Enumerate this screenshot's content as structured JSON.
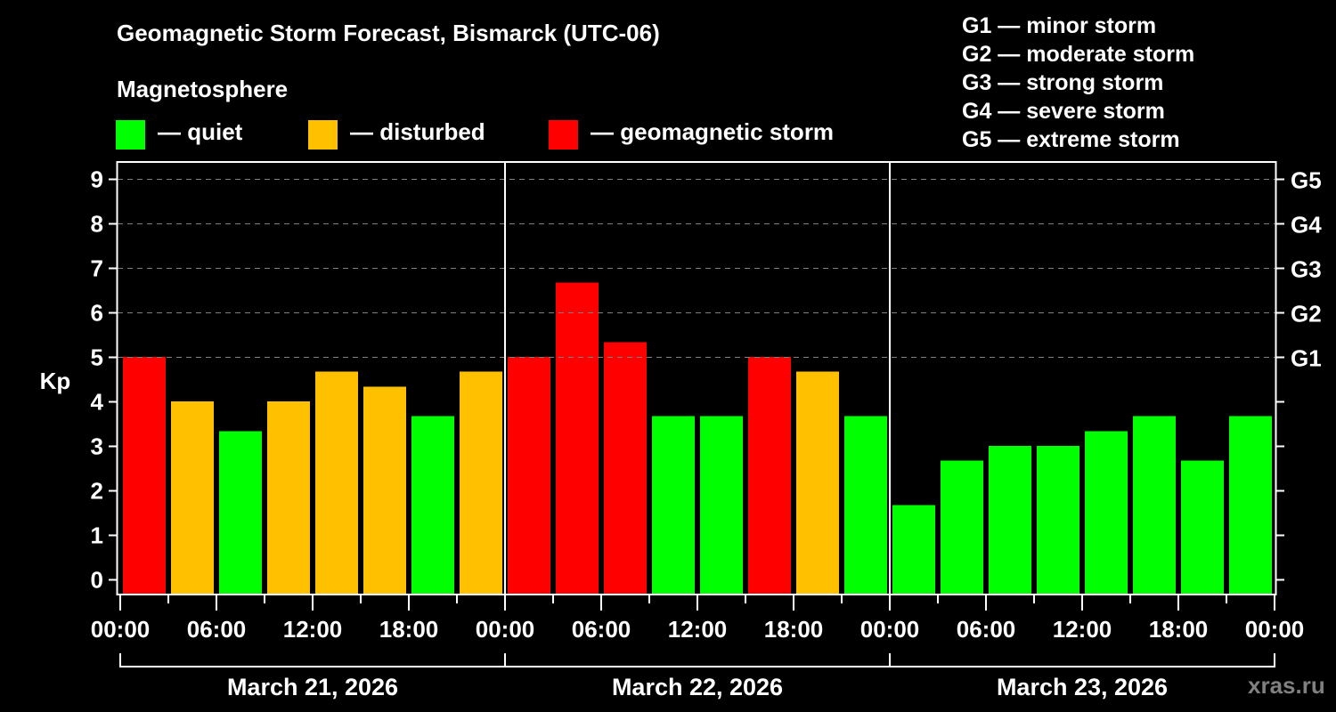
{
  "title": "Geomagnetic Storm Forecast, Bismarck (UTC-06)",
  "subtitle": "Magnetosphere",
  "legend": [
    {
      "label": "— quiet",
      "color": "#00ff00"
    },
    {
      "label": "— disturbed",
      "color": "#ffc000"
    },
    {
      "label": "— geomagnetic storm",
      "color": "#ff0000"
    }
  ],
  "storm_scale": [
    "G1 — minor storm",
    "G2 — moderate storm",
    "G3 — strong storm",
    "G4 — severe storm",
    "G5 — extreme storm"
  ],
  "watermark": "xras.ru",
  "colors": {
    "background": "#000000",
    "quiet": "#00ff00",
    "disturbed": "#ffc000",
    "storm": "#ff0000",
    "grid": "#808080",
    "axis": "#ffffff"
  },
  "chart_data": {
    "type": "bar",
    "title": "Geomagnetic Storm Forecast, Bismarck (UTC-06)",
    "xlabel": "",
    "ylabel": "Kp",
    "ylim": [
      0,
      9
    ],
    "yticks": [
      0,
      1,
      2,
      3,
      4,
      5,
      6,
      7,
      8,
      9
    ],
    "right_axis_labels": [
      {
        "kp": 5,
        "label": "G1"
      },
      {
        "kp": 6,
        "label": "G2"
      },
      {
        "kp": 7,
        "label": "G3"
      },
      {
        "kp": 8,
        "label": "G4"
      },
      {
        "kp": 9,
        "label": "G5"
      }
    ],
    "grid": "horizontal dashed at Kp 5-9",
    "interval_hours": 3,
    "xtick_labels": [
      "00:00",
      "06:00",
      "12:00",
      "18:00",
      "00:00",
      "06:00",
      "12:00",
      "18:00",
      "00:00",
      "06:00",
      "12:00",
      "18:00",
      "00:00"
    ],
    "days": [
      "March 21, 2026",
      "March 22, 2026",
      "March 23, 2026"
    ],
    "categories": [
      "Mar 21 00-03",
      "Mar 21 03-06",
      "Mar 21 06-09",
      "Mar 21 09-12",
      "Mar 21 12-15",
      "Mar 21 15-18",
      "Mar 21 18-21",
      "Mar 21 21-24",
      "Mar 22 00-03",
      "Mar 22 03-06",
      "Mar 22 06-09",
      "Mar 22 09-12",
      "Mar 22 12-15",
      "Mar 22 15-18",
      "Mar 22 18-21",
      "Mar 22 21-24",
      "Mar 23 00-03",
      "Mar 23 03-06",
      "Mar 23 06-09",
      "Mar 23 09-12",
      "Mar 23 12-15",
      "Mar 23 15-18",
      "Mar 23 18-21",
      "Mar 23 21-24"
    ],
    "values": [
      5.0,
      4.0,
      3.33,
      4.0,
      4.67,
      4.33,
      3.67,
      4.67,
      5.0,
      6.67,
      5.33,
      3.67,
      3.67,
      5.0,
      4.67,
      3.67,
      1.67,
      2.67,
      3.0,
      3.0,
      3.33,
      3.67,
      2.67,
      3.67
    ],
    "levels": [
      "storm",
      "disturbed",
      "quiet",
      "disturbed",
      "disturbed",
      "disturbed",
      "quiet",
      "disturbed",
      "storm",
      "storm",
      "storm",
      "quiet",
      "quiet",
      "storm",
      "disturbed",
      "quiet",
      "quiet",
      "quiet",
      "quiet",
      "quiet",
      "quiet",
      "quiet",
      "quiet",
      "quiet"
    ],
    "legend_position": "top"
  }
}
